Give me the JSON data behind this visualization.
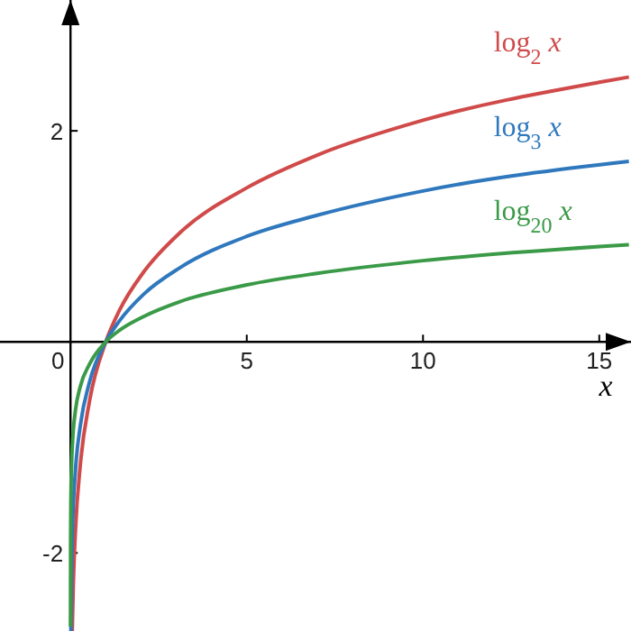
{
  "chart_data": {
    "type": "line",
    "xlabel": "x",
    "xlim": [
      -2.0,
      15.9
    ],
    "ylim": [
      -2.74,
      3.24
    ],
    "xticks": [
      0,
      5,
      10,
      15
    ],
    "yticks": [
      -2,
      2
    ],
    "grid": false,
    "marker": "none",
    "line_style": "solid",
    "series": [
      {
        "name": "log$_{2}$ x",
        "color": "#d04a4a",
        "x": [
          0.049,
          0.08,
          0.14,
          0.28,
          0.54,
          1,
          1.39,
          2.07,
          3.09,
          5,
          7,
          10,
          15,
          15.84
        ],
        "values": [
          -2.74,
          -2.3,
          -1.79,
          -1.16,
          -0.56,
          0,
          0.3,
          0.66,
          1.03,
          1.46,
          1.77,
          2.1,
          2.46,
          2.51
        ]
      },
      {
        "name": "log$_{3}$ x",
        "color": "#2f78bd",
        "x": [
          0.012,
          0.03,
          0.06,
          0.14,
          0.28,
          0.54,
          1,
          1.39,
          2.07,
          3.09,
          5,
          7,
          10,
          15.84
        ],
        "values": [
          -2.74,
          -2.17,
          -1.74,
          -1.22,
          -0.79,
          -0.38,
          0,
          0.2,
          0.45,
          0.7,
          1.0,
          1.2,
          1.43,
          1.71
        ]
      },
      {
        "name": "log$_{20}$ x",
        "color": "#3a9a47",
        "x": [
          0.0003,
          0.003,
          0.01,
          0.03,
          0.06,
          0.14,
          0.28,
          0.54,
          1,
          1.39,
          2.07,
          3.09,
          5,
          7,
          10,
          15.84
        ],
        "values": [
          -2.7,
          -1.93,
          -1.53,
          -1.17,
          -0.94,
          -0.65,
          -0.42,
          -0.21,
          0,
          0.11,
          0.24,
          0.38,
          0.54,
          0.65,
          0.77,
          0.92
        ]
      }
    ]
  }
}
